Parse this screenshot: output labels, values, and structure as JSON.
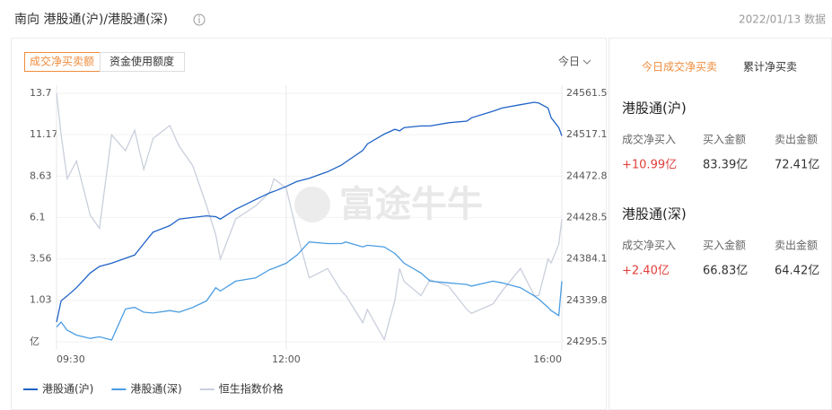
{
  "header": {
    "title": "南向 港股通(沪)/港股通(深)",
    "date": "2022/01/13 数据"
  },
  "tabs": [
    "成交净买卖额",
    "资金使用额度"
  ],
  "period": "今日",
  "chart_data": {
    "type": "line",
    "watermark": "富途牛牛",
    "x": [
      0,
      3,
      7,
      13,
      22,
      28,
      36,
      45,
      51,
      57,
      63,
      74,
      80,
      89,
      98,
      104,
      107,
      117,
      130,
      139,
      142,
      150,
      157,
      165,
      177,
      186,
      189,
      200,
      203,
      214,
      221,
      224,
      227,
      238,
      244,
      256,
      268,
      271,
      285,
      291,
      303,
      312,
      315,
      321,
      323,
      328,
      330
    ],
    "xlim": [
      0,
      330
    ],
    "xticks": [
      {
        "value": 0,
        "label": "09:30"
      },
      {
        "value": 150,
        "label": "12:00"
      },
      {
        "value": 330,
        "label": "16:00"
      }
    ],
    "ylim": [
      -1.51,
      13.7
    ],
    "yticks": [
      {
        "value": -1.51,
        "label": "亿"
      },
      1.03,
      3.56,
      6.1,
      8.63,
      11.17,
      13.7
    ],
    "y2lim": [
      24295.5,
      24561.5
    ],
    "y2ticks": [
      24295.5,
      24339.8,
      24384.1,
      24428.5,
      24472.8,
      24517.1,
      24561.5
    ],
    "grid": true,
    "legend": "bottom-left",
    "series": [
      {
        "name": "港股通(沪)",
        "color": "#1f63c6",
        "values": [
          -0.3,
          1.0,
          1.3,
          1.8,
          2.7,
          3.1,
          3.3,
          3.6,
          3.8,
          4.5,
          5.2,
          5.6,
          6.0,
          6.1,
          6.2,
          6.15,
          6.0,
          6.6,
          7.2,
          7.6,
          7.7,
          8.0,
          8.3,
          8.5,
          8.9,
          9.3,
          9.5,
          10.2,
          10.6,
          11.2,
          11.5,
          11.4,
          11.6,
          11.7,
          11.7,
          11.9,
          12.0,
          12.2,
          12.6,
          12.8,
          13.0,
          13.15,
          13.1,
          12.8,
          12.2,
          11.6,
          11.1
        ]
      },
      {
        "name": "港股通(深)",
        "color": "#4b9de2",
        "values": [
          -0.6,
          -0.3,
          -0.8,
          -1.1,
          -1.3,
          -1.2,
          -1.4,
          0.5,
          0.6,
          0.3,
          0.25,
          0.4,
          0.3,
          0.6,
          1.0,
          1.8,
          1.6,
          2.2,
          2.4,
          2.9,
          3.0,
          3.3,
          3.8,
          4.6,
          4.5,
          4.5,
          4.6,
          4.3,
          4.4,
          4.3,
          3.9,
          3.6,
          3.3,
          2.7,
          2.2,
          2.1,
          2.0,
          1.9,
          2.2,
          2.1,
          1.8,
          1.3,
          1.1,
          0.6,
          0.4,
          0.1,
          2.2
        ]
      },
      {
        "name": "恒生指数价格",
        "color": "#c9cfdc",
        "axis": "y2",
        "values": [
          24561.5,
          24517,
          24470,
          24489,
          24431,
          24417,
          24517,
          24500,
          24522,
          24480,
          24513,
          24527,
          24505,
          24484,
          24441,
          24410,
          24384,
          24427,
          24441,
          24455,
          24470,
          24460,
          24412,
          24364,
          24374,
          24350,
          24345,
          24316,
          24330,
          24298,
          24340,
          24374,
          24360,
          24345,
          24362,
          24355,
          24330,
          24326,
          24336,
          24350,
          24374,
          24345,
          24345,
          24384,
          24380,
          24400,
          24427
        ]
      }
    ]
  },
  "side": {
    "tabs": [
      "今日成交净买卖",
      "累计净买卖"
    ],
    "sections": [
      {
        "title": "港股通(沪)",
        "labels": [
          "成交净买入",
          "买入金额",
          "卖出金额"
        ],
        "values": [
          "+10.99亿",
          "83.39亿",
          "72.41亿"
        ]
      },
      {
        "title": "港股通(深)",
        "labels": [
          "成交净买入",
          "买入金额",
          "卖出金额"
        ],
        "values": [
          "+2.40亿",
          "66.83亿",
          "64.42亿"
        ]
      }
    ]
  }
}
